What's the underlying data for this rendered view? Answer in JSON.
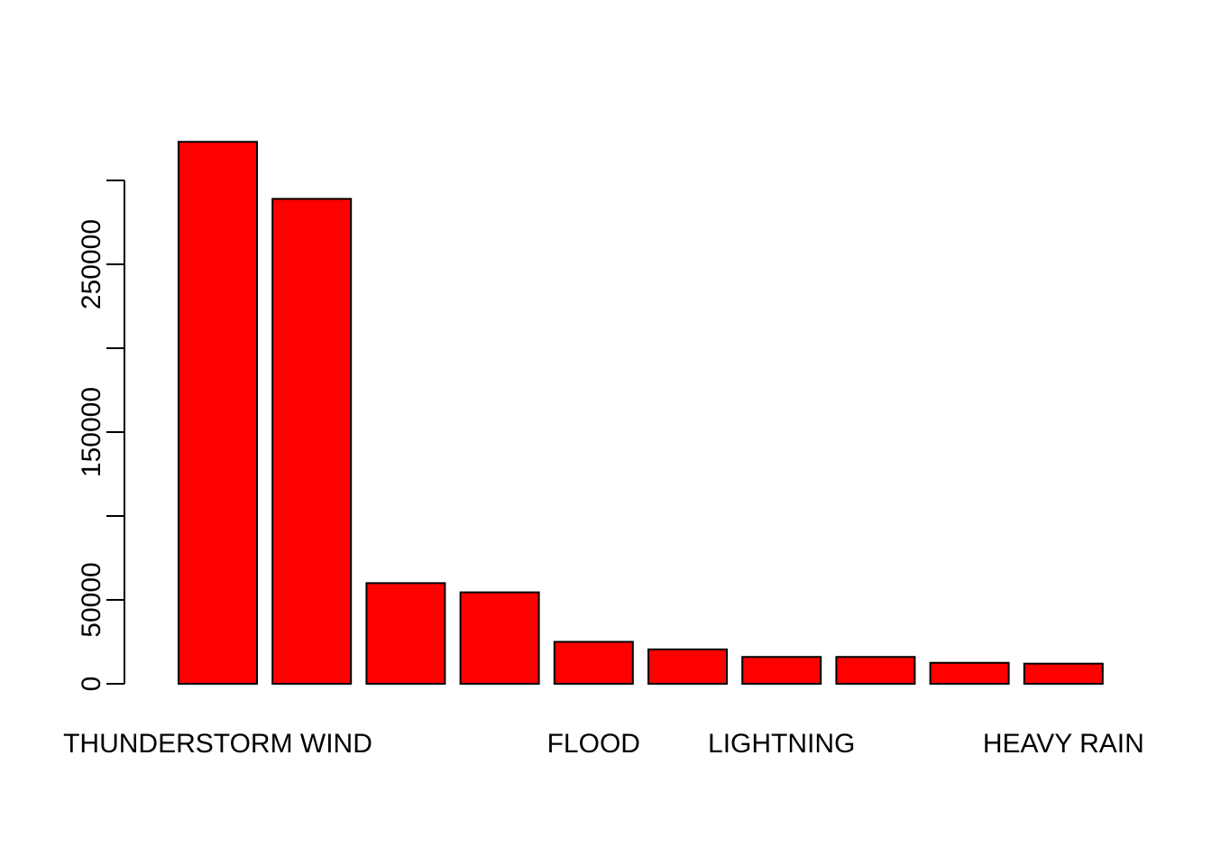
{
  "chart_data": {
    "type": "bar",
    "title": "",
    "xlabel": "",
    "ylabel": "",
    "categories": [
      "",
      "",
      "",
      "",
      "",
      "",
      "",
      "",
      "",
      ""
    ],
    "category_labels_shown": [
      {
        "index": 0,
        "label": "THUNDERSTORM WIND"
      },
      {
        "index": 4,
        "label": "FLOOD"
      },
      {
        "index": 6,
        "label": "LIGHTNING"
      },
      {
        "index": 9,
        "label": "HEAVY RAIN"
      }
    ],
    "values": [
      323000,
      289000,
      60000,
      54500,
      25000,
      20500,
      16000,
      16000,
      12500,
      12000
    ],
    "ylim": [
      0,
      300000
    ],
    "yticks": [
      0,
      50000,
      100000,
      150000,
      200000,
      250000,
      300000
    ],
    "ytick_labels": [
      "0",
      "50000",
      "",
      "150000",
      "",
      "250000",
      ""
    ],
    "bar_color": "#ff0000",
    "border_color": "#000000",
    "grid": false,
    "legend": "none"
  }
}
